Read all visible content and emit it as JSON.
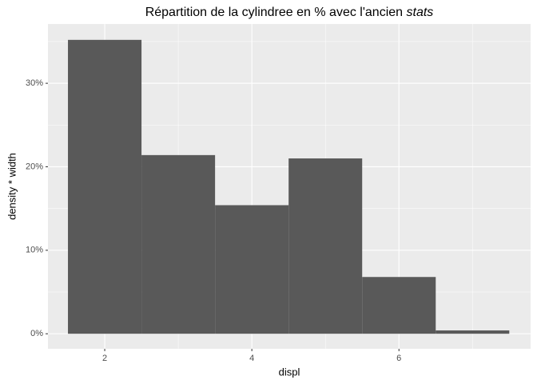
{
  "chart_data": {
    "type": "histogram",
    "title": {
      "text": "Répartition de la cylindree en % avec l'ancien",
      "italic": "stats"
    },
    "x_label": "displ",
    "y_label": "density * width",
    "bins": [
      1.5,
      2.5,
      3.5,
      4.5,
      5.5,
      6.5,
      7.5
    ],
    "values": [
      35.2,
      21.4,
      15.4,
      21.0,
      6.8,
      0.4
    ],
    "color": "#595959",
    "xlim": [
      1.228,
      7.79
    ],
    "xticks": [
      2,
      4,
      6
    ],
    "minor_xticks": [
      3,
      5,
      7
    ],
    "ylim": [
      -1.8,
      37.1
    ],
    "yticks": [
      {
        "value": 0,
        "label": "0%"
      },
      {
        "value": 10,
        "label": "10%"
      },
      {
        "value": 20,
        "label": "20%"
      },
      {
        "value": 30,
        "label": "30%"
      }
    ],
    "minor_yticks": [
      5,
      15,
      25,
      35
    ],
    "grid": true
  }
}
